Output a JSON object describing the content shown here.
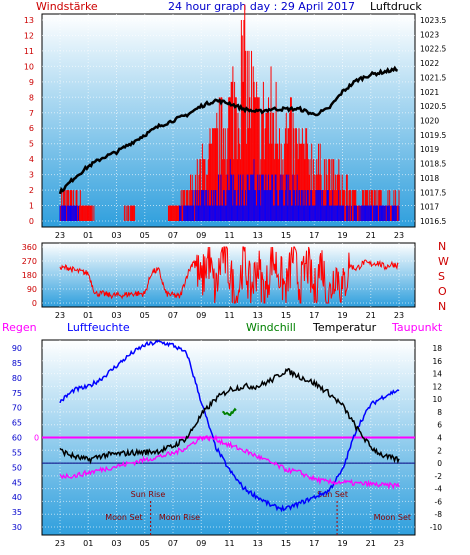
{
  "colors": {
    "plot_top": "#ffffff",
    "plot_bottom": "#2f9fdd",
    "pressure": "#000000",
    "wind_gust": "#ff0000",
    "wind_avg": "#0000ff",
    "winddir": "#ff0000",
    "humidity": "#0000ff",
    "temperature": "#000000",
    "windchill": "#008000",
    "dewpoint": "#ff00ff",
    "rain_marker": "#ff00ff",
    "axis_red": "#cc0000",
    "axis_blue": "#0000cc"
  },
  "chart_data": [
    {
      "type": "line",
      "title": "24 hour graph day : 29 April 2017",
      "ylabel_left": "Windstärke",
      "ylabel_right": "Luftdruck",
      "x_ticks": [
        "23",
        "01",
        "03",
        "05",
        "07",
        "09",
        "11",
        "13",
        "15",
        "17",
        "19",
        "21",
        "23"
      ],
      "left_ticks": [
        "0",
        "1",
        "2",
        "3",
        "4",
        "5",
        "6",
        "7",
        "8",
        "9",
        "10",
        "11",
        "12",
        "13"
      ],
      "right_ticks": [
        "1016.5",
        "1017",
        "1017.5",
        "1018",
        "1018.5",
        "1019",
        "1019.5",
        "1020",
        "1020.5",
        "1021",
        "1021.5",
        "1022",
        "1022.5",
        "1023",
        "1023.5"
      ],
      "ylim_left": [
        0,
        13
      ],
      "ylim_right": [
        1016.5,
        1023.5
      ],
      "series": [
        {
          "name": "Luftdruck",
          "axis": "right",
          "color": "pressure",
          "hours": [
            0,
            1,
            2,
            3,
            4,
            5,
            6,
            7,
            8,
            9,
            10,
            11,
            12,
            13,
            14,
            15,
            16,
            17,
            18,
            19,
            20,
            21,
            22,
            23,
            24
          ],
          "values": [
            1017.5,
            1018.0,
            1018.4,
            1018.7,
            1018.9,
            1019.2,
            1019.5,
            1019.8,
            1020.0,
            1020.2,
            1020.5,
            1020.7,
            1020.6,
            1020.4,
            1020.3,
            1020.4,
            1020.4,
            1020.4,
            1020.2,
            1020.4,
            1021.0,
            1021.4,
            1021.6,
            1021.7,
            1021.8
          ]
        },
        {
          "name": "Windstärke Böen",
          "axis": "left",
          "color": "wind_gust",
          "hours": [
            0,
            1,
            2,
            3,
            4,
            5,
            6,
            7,
            8,
            9,
            10,
            11,
            12,
            13,
            14,
            15,
            16,
            17,
            18,
            19,
            20,
            21,
            22,
            23,
            24
          ],
          "values": [
            2,
            2,
            1,
            0,
            0,
            1,
            0,
            0,
            1,
            2,
            4,
            6,
            9,
            13,
            8,
            9,
            7,
            6,
            5,
            4,
            3,
            2,
            2,
            2,
            2
          ]
        },
        {
          "name": "Windstärke Mittel",
          "axis": "left",
          "color": "wind_avg",
          "hours": [
            0,
            1,
            2,
            3,
            4,
            5,
            6,
            7,
            8,
            9,
            10,
            11,
            12,
            13,
            14,
            15,
            16,
            17,
            18,
            19,
            20,
            21,
            22,
            23,
            24
          ],
          "values": [
            1,
            1,
            0,
            0,
            0,
            0,
            0,
            0,
            0,
            1,
            2,
            2,
            3,
            3,
            3,
            3,
            3,
            2,
            2,
            2,
            1,
            1,
            1,
            1,
            1
          ]
        }
      ]
    },
    {
      "type": "line",
      "title": "",
      "right_labels": [
        "N",
        "W",
        "S",
        "O",
        "N"
      ],
      "left_ticks": [
        "0",
        "90",
        "180",
        "270",
        "360"
      ],
      "x_ticks": [
        "23",
        "01",
        "03",
        "05",
        "07",
        "09",
        "11",
        "13",
        "15",
        "17",
        "19",
        "21",
        "23"
      ],
      "ylim": [
        0,
        360
      ],
      "series": [
        {
          "name": "Windrichtung",
          "color": "winddir",
          "hours": [
            0,
            0.5,
            1,
            1.5,
            2,
            2.5,
            3,
            3.5,
            4,
            4.5,
            5,
            5.5,
            6,
            6.5,
            7,
            7.5,
            8,
            8.5,
            9,
            9.5,
            10,
            10.5,
            11,
            11.5,
            12,
            12.5,
            13,
            13.5,
            14,
            14.5,
            15,
            15.5,
            16,
            16.5,
            17,
            17.5,
            18,
            18.5,
            19,
            19.5,
            20,
            20.5,
            21,
            21.5,
            22,
            22.5,
            23,
            23.5,
            24
          ],
          "values": [
            220,
            230,
            210,
            200,
            190,
            60,
            60,
            50,
            50,
            50,
            60,
            60,
            60,
            200,
            210,
            60,
            50,
            40,
            180,
            280,
            120,
            300,
            60,
            330,
            200,
            20,
            290,
            80,
            250,
            40,
            300,
            200,
            70,
            310,
            90,
            260,
            60,
            280,
            20,
            220,
            80,
            240,
            220,
            260,
            250,
            260,
            230,
            250,
            240
          ]
        }
      ]
    },
    {
      "type": "line",
      "title": "",
      "legend": [
        "Regen",
        "Luftfeuchte",
        "Windchill",
        "Temperatur",
        "Taupunkt"
      ],
      "left_ticks": [
        "30",
        "35",
        "40",
        "45",
        "50",
        "55",
        "60",
        "65",
        "70",
        "75",
        "80",
        "85",
        "90"
      ],
      "right_ticks": [
        "-10",
        "-8",
        "-6",
        "-4",
        "-2",
        "0",
        "2",
        "4",
        "6",
        "8",
        "10",
        "12",
        "14",
        "16",
        "18"
      ],
      "x_ticks": [
        "23",
        "01",
        "03",
        "05",
        "07",
        "09",
        "11",
        "13",
        "15",
        "17",
        "19",
        "21",
        "23"
      ],
      "ylim_left": [
        28,
        93
      ],
      "ylim_right": [
        -11,
        19
      ],
      "rain_marker": "0",
      "annotations": [
        "Moon Set",
        "Sun Rise",
        "Moon Rise",
        "Sun Set",
        "Moon Set"
      ],
      "series": [
        {
          "name": "Luftfeuchte",
          "axis": "left",
          "color": "humidity",
          "hours": [
            0,
            1,
            2,
            3,
            4,
            5,
            6,
            7,
            8,
            9,
            10,
            11,
            12,
            13,
            14,
            15,
            16,
            17,
            18,
            19,
            20,
            21,
            22,
            23,
            24
          ],
          "values": [
            72,
            76,
            77,
            80,
            84,
            88,
            91,
            92,
            91,
            88,
            72,
            57,
            49,
            43,
            40,
            37,
            36,
            38,
            40,
            42,
            49,
            63,
            71,
            74,
            76
          ]
        },
        {
          "name": "Temperatur",
          "axis": "right",
          "color": "temperature",
          "hours": [
            0,
            1,
            2,
            3,
            4,
            5,
            6,
            7,
            8,
            9,
            10,
            11,
            12,
            13,
            14,
            15,
            16,
            17,
            18,
            19,
            20,
            21,
            22,
            23,
            24
          ],
          "values": [
            2.0,
            1.0,
            0.5,
            1.2,
            1.4,
            1.6,
            1.7,
            1.9,
            2.6,
            4.0,
            7.5,
            10.0,
            11.5,
            12.0,
            12.0,
            13.0,
            14.5,
            13.5,
            12.5,
            11.0,
            9.0,
            5.5,
            2.5,
            1.0,
            0.5
          ]
        },
        {
          "name": "Windchill",
          "axis": "right",
          "color": "windchill",
          "hours": [
            11.5,
            12,
            12.5
          ],
          "values": [
            8.0,
            7.5,
            8.5
          ]
        },
        {
          "name": "Taupunkt",
          "axis": "right",
          "color": "dewpoint",
          "hours": [
            0,
            1,
            2,
            3,
            4,
            5,
            6,
            7,
            8,
            9,
            10,
            11,
            12,
            13,
            14,
            15,
            16,
            17,
            18,
            19,
            20,
            21,
            22,
            23,
            24
          ],
          "values": [
            -2.0,
            -2.0,
            -1.5,
            -1.0,
            -0.5,
            0.0,
            0.5,
            1.0,
            1.5,
            2.5,
            4.0,
            3.8,
            2.8,
            2.0,
            1.0,
            0.0,
            -1.0,
            -1.5,
            -2.5,
            -3.0,
            -3.0,
            -3.2,
            -3.3,
            -3.5,
            -3.5
          ]
        }
      ]
    }
  ]
}
